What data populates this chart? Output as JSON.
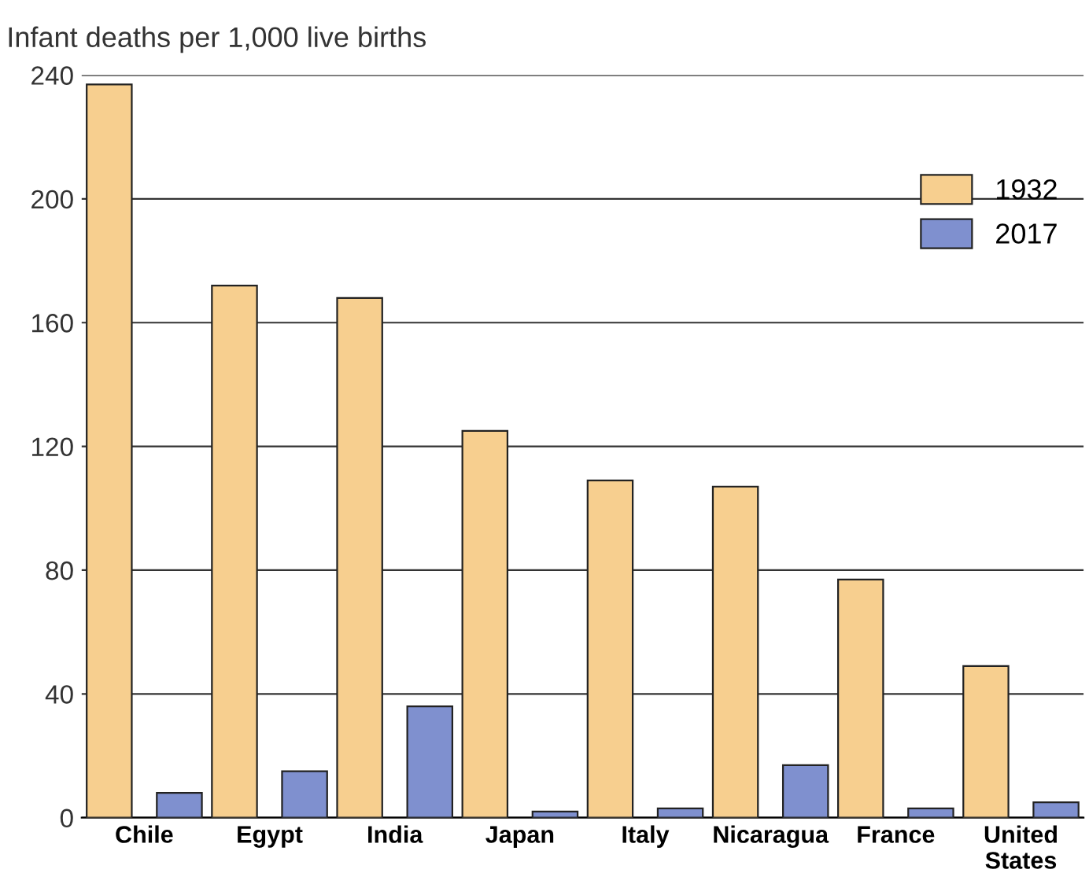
{
  "chart_data": {
    "type": "bar",
    "ylabel": "Infant deaths per 1,000 live births",
    "categories": [
      "Chile",
      "Egypt",
      "India",
      "Japan",
      "Italy",
      "Nicaragua",
      "France",
      "United\nStates"
    ],
    "series": [
      {
        "name": "1932",
        "color": "#f7cf8f",
        "values": [
          237,
          172,
          168,
          125,
          109,
          107,
          77,
          49
        ]
      },
      {
        "name": "2017",
        "color": "#7f90cf",
        "values": [
          8,
          15,
          36,
          2,
          3,
          17,
          3,
          5
        ]
      }
    ],
    "ylim": [
      0,
      240
    ],
    "yticks": [
      0,
      40,
      80,
      120,
      160,
      200,
      240
    ],
    "grid": "y",
    "legend": "top right"
  }
}
